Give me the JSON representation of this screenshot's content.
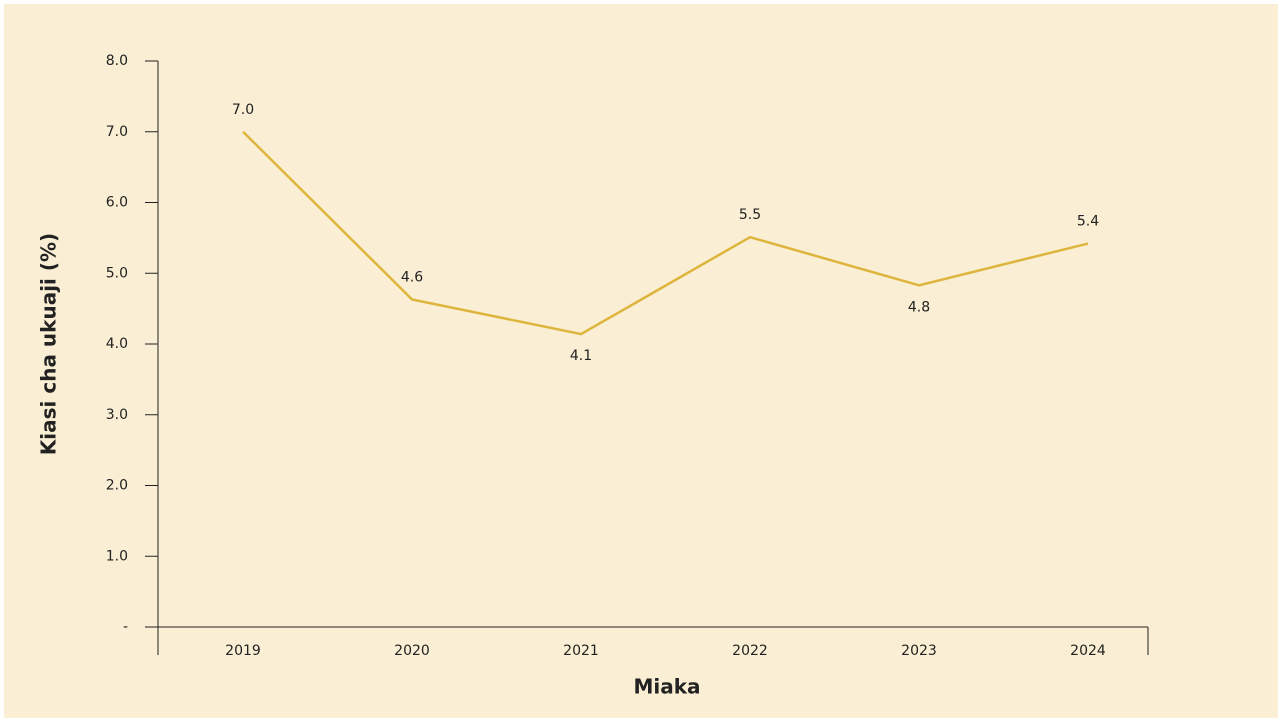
{
  "chart_data": {
    "type": "line",
    "x_label": "Miaka",
    "y_label": "Kiasi cha ukuaji (%)",
    "categories": [
      "2019",
      "2020",
      "2021",
      "2022",
      "2023",
      "2024"
    ],
    "series": [
      {
        "color": "#deb53c",
        "values": [
          7.0,
          4.63,
          4.14,
          5.51,
          4.83,
          5.42
        ],
        "value_labels": [
          "7.0",
          "4.6",
          "4.1",
          "5.5",
          "4.8",
          "5.4"
        ]
      }
    ],
    "ylim": [
      0,
      8
    ],
    "yticks": [
      {
        "value": 0,
        "label": "-"
      },
      {
        "value": 1,
        "label": "1.0"
      },
      {
        "value": 2,
        "label": "2.0"
      },
      {
        "value": 3,
        "label": "3.0"
      },
      {
        "value": 4,
        "label": "4.0"
      },
      {
        "value": 5,
        "label": "5.0"
      },
      {
        "value": 6,
        "label": "6.0"
      },
      {
        "value": 7,
        "label": "7.0"
      },
      {
        "value": 8,
        "label": "8.0"
      }
    ]
  }
}
